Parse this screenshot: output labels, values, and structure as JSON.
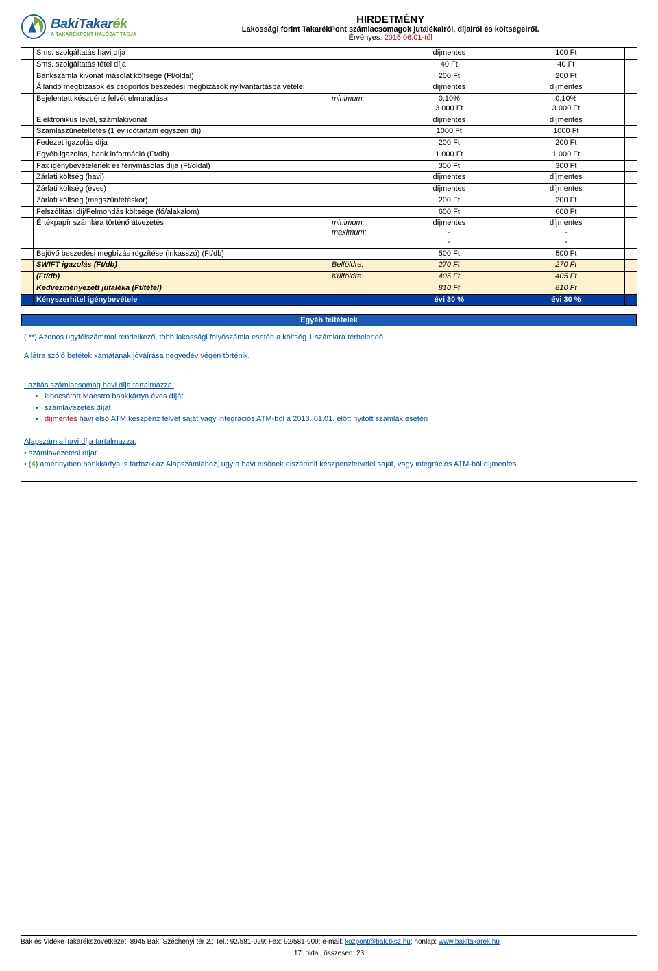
{
  "header": {
    "logo_name_1": "Baki",
    "logo_name_2": "Takar",
    "logo_name_3": "ék",
    "logo_sub": "A TAKARÉKPONT HÁLÓZAT TAGJA",
    "title": "HIRDETMÉNY",
    "subtitle": "Lakossági forint TakarékPont számlacsomagok jutalékairól, díjairól és költségeiről.",
    "valid_label": "Érvényes",
    "valid_date": ": 2015.06.01-től"
  },
  "rows": [
    {
      "label": "Sms. szolgáltatás havi díja",
      "mid": "",
      "v1": "díjmentes",
      "v2": "100 Ft",
      "cls": ""
    },
    {
      "label": "Sms. szolgáltatás tétel díja",
      "mid": "",
      "v1": "40 Ft",
      "v2": "40 Ft",
      "cls": ""
    },
    {
      "label": "Bankszámla kivonat másolat költsége (Ft/oldal)",
      "mid": "",
      "v1": "200 Ft",
      "v2": "200 Ft",
      "cls": ""
    },
    {
      "label": "Állandó megbízások és csoportos beszedési megbízások nyilvántartásba vétele:",
      "mid": "",
      "v1": "díjmentes",
      "v2": "díjmentes",
      "cls": ""
    },
    {
      "label": "Bejelentett készpénz felvét elmaradása",
      "mid": "minimum:",
      "v1": "0,10%\n3 000 Ft",
      "v2": "0,10%\n3 000 Ft",
      "cls": ""
    },
    {
      "label": "Elektronikus levél, számlakivonat",
      "mid": "",
      "v1": "díjmentes",
      "v2": "díjmentes",
      "cls": ""
    },
    {
      "label": "Számlaszüneteltetés (1 év időtartam egyszeri díj)",
      "mid": "",
      "v1": "1000 Ft",
      "v2": "1000 Ft",
      "cls": ""
    },
    {
      "label": "Fedezet igazolás díja",
      "mid": "",
      "v1": "200 Ft",
      "v2": "200 Ft",
      "cls": ""
    },
    {
      "label": "Egyéb igazolás, bank információ (Ft/db)",
      "mid": "",
      "v1": "1 000 Ft",
      "v2": "1 000 Ft",
      "cls": ""
    },
    {
      "label": "Fax igénybevételének  és fénymásolás díja  (Ft/oldal)",
      "mid": "",
      "v1": "300 Ft",
      "v2": "300 Ft",
      "cls": ""
    },
    {
      "label": "Zárlati költség (havi)",
      "mid": "",
      "v1": "díjmentes",
      "v2": "díjmentes",
      "cls": ""
    },
    {
      "label": "Zárlati költség (éves)",
      "mid": "",
      "v1": "díjmentes",
      "v2": "díjmentes",
      "cls": ""
    },
    {
      "label": "Zárlati költség (megszüntetéskor)",
      "mid": "",
      "v1": "200 Ft",
      "v2": "200 Ft",
      "cls": ""
    },
    {
      "label": "Felszólítási díj/Felmondás költsége (fő/alakalom)",
      "mid": "",
      "v1": "600 Ft",
      "v2": "600 Ft",
      "cls": ""
    },
    {
      "label": "Értékpapír számlára történő átvezetés",
      "mid": "minimum:\nmaximum:",
      "v1": "díjmentes\n-\n-",
      "v2": "díjmentes\n-\n-",
      "cls": ""
    },
    {
      "label": "Bejövő beszedési megbízás rögzítése (inkasszó) (Ft/db)",
      "mid": "",
      "v1": "500 Ft",
      "v2": "500 Ft",
      "cls": ""
    },
    {
      "label": "SWIFT igazolás          (Ft/db)",
      "mid": "Belföldre:",
      "v1": "270 Ft",
      "v2": "270 Ft",
      "cls": "yellow"
    },
    {
      "label": "                                (Ft/db)",
      "mid": "Külföldre:",
      "v1": "405 Ft",
      "v2": "405 Ft",
      "cls": "yellow"
    },
    {
      "label": "Kedvezményezett jutaléka  (Ft/tétel)",
      "mid": "",
      "v1": "810 Ft",
      "v2": "810 Ft",
      "cls": "yellow"
    },
    {
      "label": "Kényszerhitel igénybevétele",
      "mid": "",
      "v1": "évi 30 %",
      "v2": "évi 30 %",
      "cls": "blue"
    }
  ],
  "egyeb_header": "Egyéb feltételek",
  "notes": {
    "note1": "( **)  Azonos ügyfélszámmal rendelkező, több lakossági folyószámla esetén a költség 1 számlára terhelendő",
    "note2": "A látra szóló betétek kamatának jóváírása negyedév végén történik.",
    "lazitas_title": "Lazítás számlacsomag havi díja tartalmazza:",
    "lazitas_b1": "kibocsátott Maestro bankkártya éves díját",
    "lazitas_b2": "számlavezetés díját",
    "lazitas_b3_pre": "díjmentes",
    "lazitas_b3_rest": " havi első ATM készpénz felvét saját vagy integrációs ATM-ből a 2013. 01.01. előtt nyitott számlák esetén",
    "alap_title": "Alapszámla havi díja tartalmazza:",
    "alap_l1": "• számlavezetési díjat",
    "alap_l2_pre": "• ",
    "alap_l2_green": "(4)",
    "alap_l2_rest": " amennyiben bankkártya is tartozik az Alapszámlához, úgy a havi elsőnek elszámolt készpénzfelvétel saját, vagy integrációs ATM-ből díjmentes"
  },
  "footer": {
    "text1": "Bak és Vidéke Takarékszövetkezet, 8945 Bak, Széchenyi tér 2.; Tel.: 92/581-029; Fax: 92/581-909; e-mail: ",
    "email": "kozpont@bak.tksz.hu",
    "text2": "; honlap: ",
    "url": "www.bakitakarek.hu",
    "pagenum": "17. oldal, összesen: 23"
  },
  "colors": {
    "yellow": "#fff2cc",
    "blue_row": "#003da5",
    "header_blue": "#1a5ab8",
    "link_blue": "#0050b8",
    "red": "#c00000",
    "green": "#008000"
  }
}
